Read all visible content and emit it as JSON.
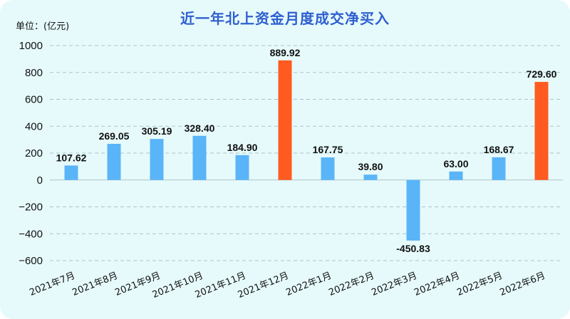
{
  "chart_data": {
    "type": "bar",
    "title": "近一年北上资金月度成交净买入",
    "unit_label": "单位：(亿元)",
    "categories": [
      "2021年7月",
      "2021年8月",
      "2021年9月",
      "2021年10月",
      "2021年11月",
      "2021年12月",
      "2022年1月",
      "2022年2月",
      "2022年3月",
      "2022年4月",
      "2022年5月",
      "2022年6月"
    ],
    "values": [
      107.62,
      269.05,
      305.19,
      328.4,
      184.9,
      889.92,
      167.75,
      39.8,
      -450.83,
      63.0,
      168.67,
      729.6
    ],
    "value_labels": [
      "107.62",
      "269.05",
      "305.19",
      "328.40",
      "184.90",
      "889.92",
      "167.75",
      "39.80",
      "-450.83",
      "63.00",
      "168.67",
      "729.60"
    ],
    "highlight": [
      false,
      false,
      false,
      false,
      false,
      true,
      false,
      false,
      false,
      false,
      false,
      true
    ],
    "yticks": [
      1000,
      800,
      600,
      400,
      200,
      0,
      -200,
      -400,
      -600
    ],
    "ytick_labels": [
      "1000",
      "800",
      "600",
      "400",
      "200",
      "0",
      "−200",
      "−400",
      "−600"
    ],
    "ylim": [
      -600,
      1000
    ],
    "grid": true,
    "colors": {
      "bar": "#5ab4f8",
      "highlight": "#ff5a1f",
      "grid": "#a9c4c8",
      "axis": "#8fa9ad"
    }
  }
}
